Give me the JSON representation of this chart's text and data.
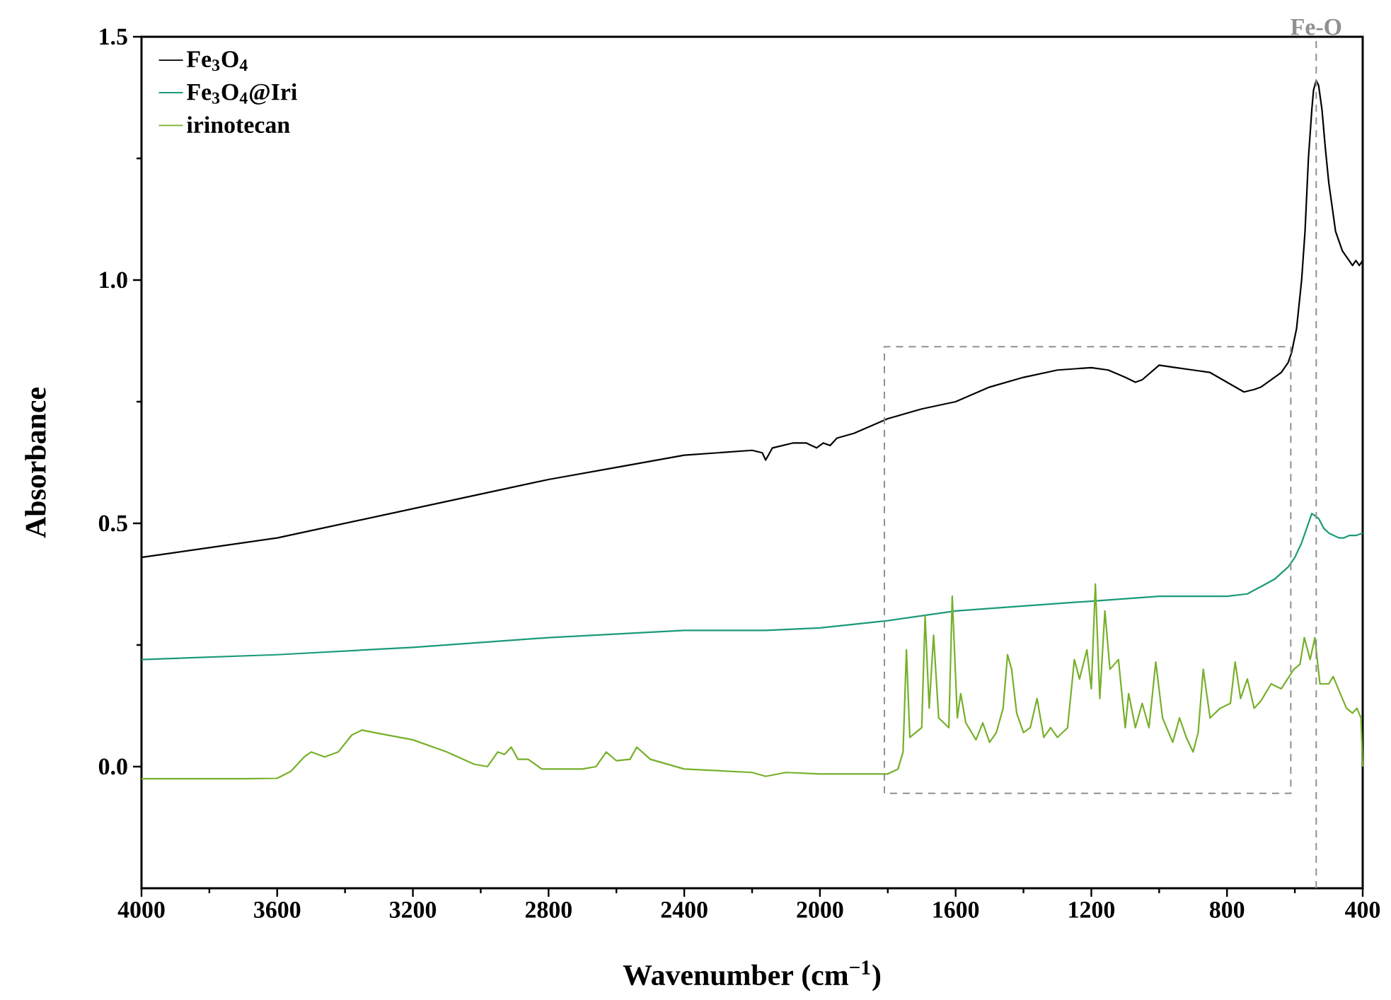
{
  "chart_data": {
    "type": "line",
    "xlabel": "Wavenumber (cm$^{−1}$)",
    "ylabel": "Absorbance",
    "xlim": [
      4000,
      400
    ],
    "ylim": [
      -0.25,
      1.5
    ],
    "xticks": [
      4000,
      3600,
      3200,
      2800,
      2400,
      2000,
      1600,
      1200,
      800,
      400
    ],
    "yticks": [
      {
        "value": 0,
        "label": "0.0"
      },
      0.5,
      {
        "value": 1,
        "label": "1.0"
      },
      1.5
    ],
    "legend": "top left",
    "grid": false,
    "marker": "none",
    "line_style": "solid",
    "ref_lines": [
      {
        "axis": "x",
        "value": 537,
        "label": "Fe-O",
        "color": "#909090",
        "line_style": "dashed"
      }
    ],
    "series": [
      {
        "name": "Fe$_{3}$O$_{4}$",
        "color": "#000000",
        "x": [
          4000,
          3800,
          3600,
          3400,
          3200,
          3000,
          2800,
          2600,
          2400,
          2300,
          2200,
          2170,
          2160,
          2140,
          2080,
          2040,
          2010,
          1990,
          1970,
          1950,
          1900,
          1800,
          1700,
          1600,
          1500,
          1400,
          1300,
          1200,
          1150,
          1100,
          1070,
          1050,
          1000,
          950,
          900,
          850,
          800,
          750,
          720,
          700,
          660,
          640,
          620,
          610,
          595,
          580,
          570,
          560,
          550,
          545,
          537,
          530,
          520,
          510,
          500,
          490,
          480,
          470,
          460,
          450,
          440,
          430,
          420,
          410,
          400
        ],
        "values": [
          0.43,
          0.45,
          0.47,
          0.5,
          0.53,
          0.56,
          0.59,
          0.615,
          0.64,
          0.645,
          0.65,
          0.645,
          0.63,
          0.655,
          0.665,
          0.665,
          0.655,
          0.665,
          0.66,
          0.675,
          0.685,
          0.715,
          0.735,
          0.75,
          0.78,
          0.8,
          0.815,
          0.82,
          0.815,
          0.8,
          0.79,
          0.795,
          0.825,
          0.82,
          0.815,
          0.81,
          0.79,
          0.77,
          0.775,
          0.78,
          0.8,
          0.81,
          0.83,
          0.85,
          0.9,
          1.0,
          1.1,
          1.25,
          1.35,
          1.39,
          1.41,
          1.4,
          1.35,
          1.27,
          1.2,
          1.15,
          1.1,
          1.08,
          1.06,
          1.05,
          1.04,
          1.03,
          1.04,
          1.03,
          1.04
        ]
      },
      {
        "name": "Fe$_{3}$O$_{4}$@Iri",
        "color": "#1a9a7a",
        "x": [
          4000,
          3600,
          3200,
          2800,
          2400,
          2160,
          2000,
          1800,
          1600,
          1400,
          1200,
          1000,
          800,
          740,
          700,
          660,
          620,
          600,
          580,
          565,
          550,
          540,
          530,
          515,
          500,
          485,
          470,
          455,
          440,
          420,
          400
        ],
        "values": [
          0.22,
          0.23,
          0.245,
          0.265,
          0.28,
          0.28,
          0.285,
          0.3,
          0.32,
          0.33,
          0.34,
          0.35,
          0.35,
          0.355,
          0.37,
          0.385,
          0.41,
          0.43,
          0.46,
          0.49,
          0.52,
          0.515,
          0.51,
          0.49,
          0.48,
          0.475,
          0.47,
          0.47,
          0.475,
          0.475,
          0.48
        ]
      },
      {
        "name": "irinotecan",
        "color": "#76b02a",
        "x": [
          4000,
          3700,
          3600,
          3560,
          3520,
          3500,
          3460,
          3420,
          3380,
          3350,
          3300,
          3200,
          3100,
          3020,
          2980,
          2950,
          2930,
          2910,
          2890,
          2860,
          2820,
          2700,
          2660,
          2630,
          2600,
          2560,
          2540,
          2500,
          2400,
          2200,
          2160,
          2100,
          2000,
          1900,
          1800,
          1770,
          1755,
          1745,
          1735,
          1700,
          1690,
          1678,
          1665,
          1650,
          1620,
          1610,
          1595,
          1585,
          1570,
          1540,
          1520,
          1500,
          1480,
          1460,
          1447,
          1435,
          1420,
          1400,
          1380,
          1360,
          1340,
          1320,
          1300,
          1270,
          1250,
          1235,
          1213,
          1200,
          1188,
          1175,
          1160,
          1145,
          1120,
          1100,
          1090,
          1070,
          1050,
          1030,
          1010,
          990,
          960,
          940,
          920,
          900,
          885,
          870,
          850,
          820,
          790,
          776,
          760,
          740,
          720,
          700,
          670,
          640,
          603,
          585,
          572,
          555,
          541,
          526,
          500,
          487,
          460,
          448,
          430,
          417,
          405,
          400
        ],
        "values": [
          -0.025,
          -0.025,
          -0.024,
          -0.01,
          0.02,
          0.03,
          0.02,
          0.03,
          0.065,
          0.075,
          0.068,
          0.055,
          0.03,
          0.005,
          0.0,
          0.03,
          0.025,
          0.04,
          0.015,
          0.015,
          -0.005,
          -0.005,
          0.0,
          0.03,
          0.012,
          0.015,
          0.04,
          0.015,
          -0.005,
          -0.012,
          -0.02,
          -0.012,
          -0.015,
          -0.015,
          -0.015,
          -0.005,
          0.03,
          0.24,
          0.06,
          0.08,
          0.31,
          0.12,
          0.27,
          0.1,
          0.08,
          0.35,
          0.1,
          0.15,
          0.09,
          0.055,
          0.09,
          0.05,
          0.07,
          0.12,
          0.23,
          0.2,
          0.11,
          0.07,
          0.08,
          0.14,
          0.06,
          0.08,
          0.06,
          0.08,
          0.22,
          0.18,
          0.24,
          0.16,
          0.375,
          0.14,
          0.32,
          0.2,
          0.22,
          0.08,
          0.15,
          0.08,
          0.13,
          0.08,
          0.215,
          0.1,
          0.05,
          0.1,
          0.06,
          0.03,
          0.07,
          0.2,
          0.1,
          0.12,
          0.13,
          0.215,
          0.14,
          0.18,
          0.12,
          0.135,
          0.17,
          0.16,
          0.2,
          0.21,
          0.265,
          0.22,
          0.265,
          0.17,
          0.17,
          0.185,
          0.14,
          0.12,
          0.11,
          0.12,
          0.1,
          0.0
        ]
      }
    ]
  }
}
